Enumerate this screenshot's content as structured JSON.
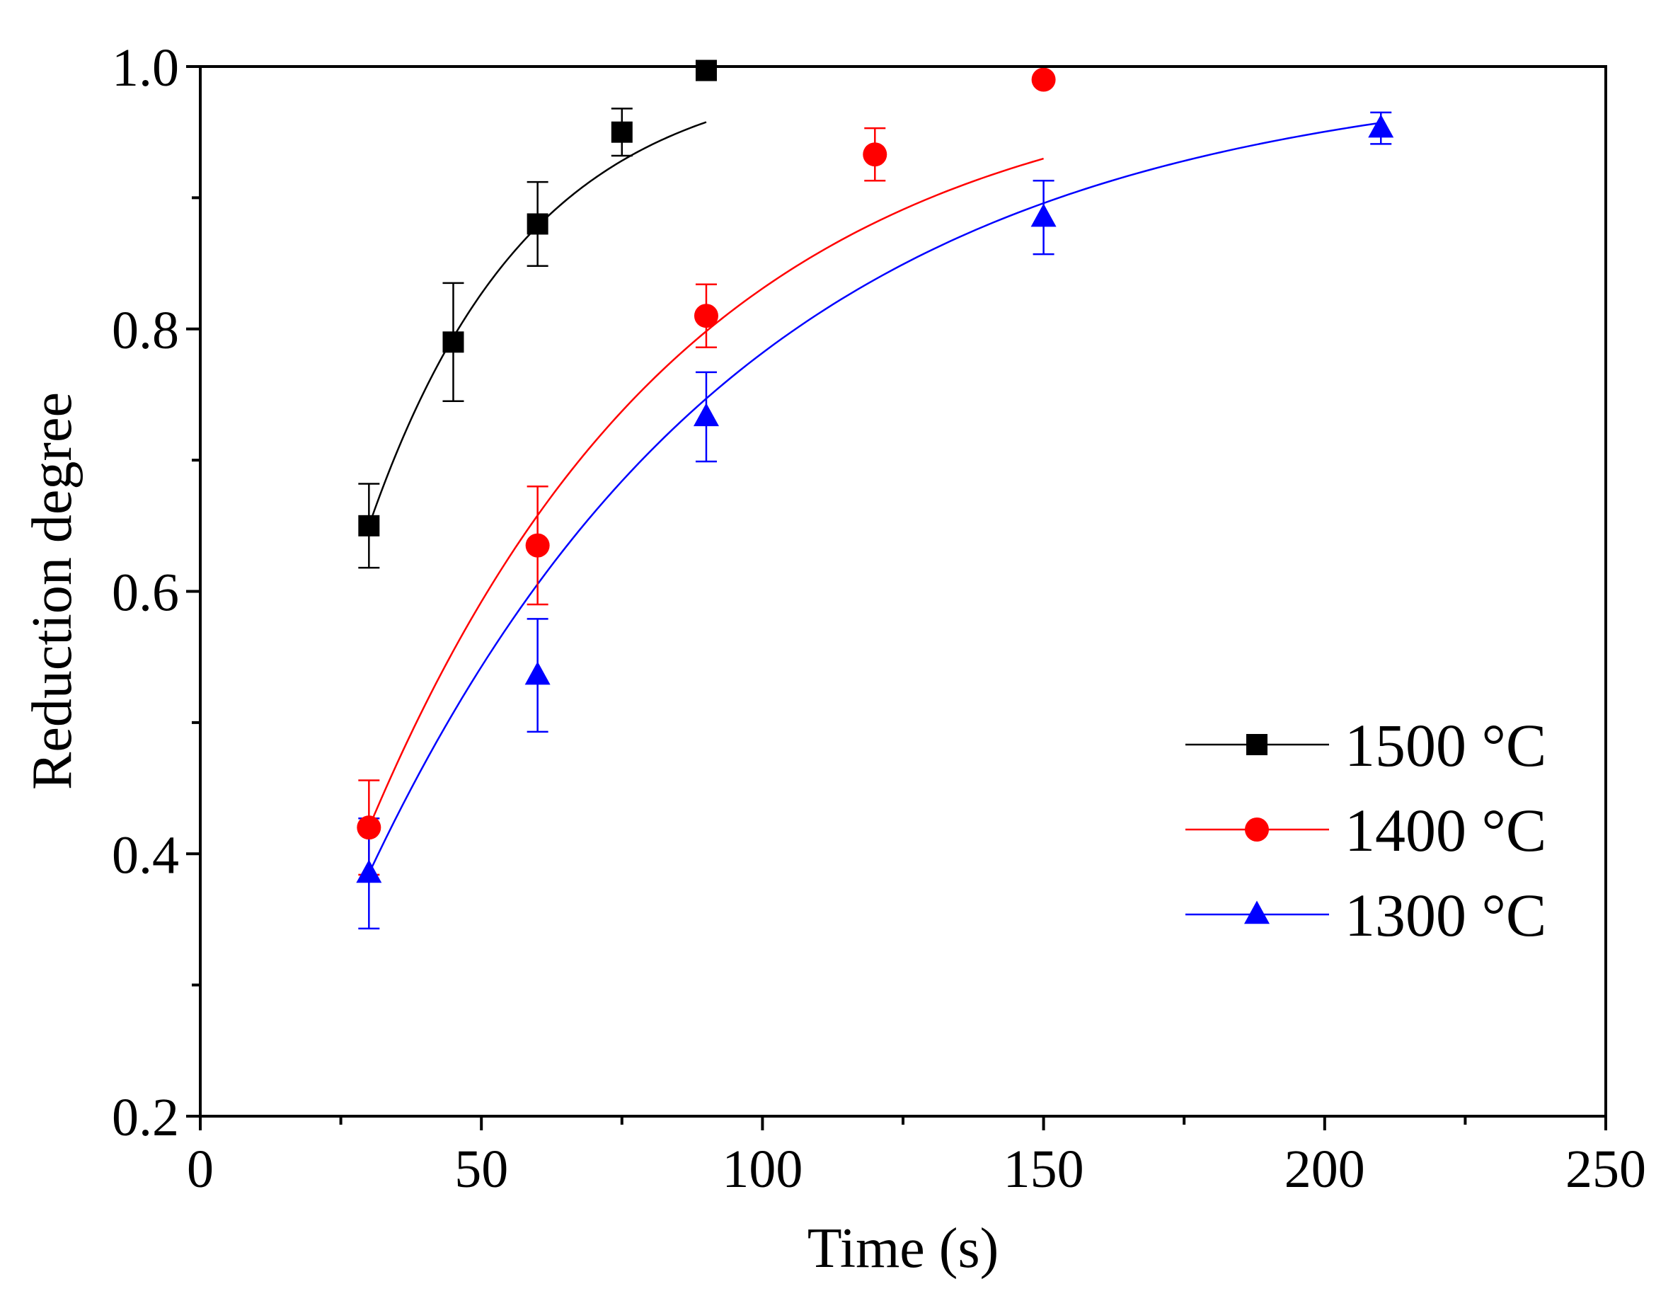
{
  "chart_data": {
    "type": "scatter",
    "title": "",
    "xlabel": "Time (s)",
    "ylabel": "Reduction degree",
    "xlim": [
      0,
      250
    ],
    "ylim": [
      0.2,
      1.0
    ],
    "grid": false,
    "legend_position": "bottom-right",
    "xticks": [
      {
        "value": 0,
        "label": "0"
      },
      {
        "value": 50,
        "label": "50"
      },
      {
        "value": 100,
        "label": "100"
      },
      {
        "value": 150,
        "label": "150"
      },
      {
        "value": 200,
        "label": "200"
      },
      {
        "value": 250,
        "label": "250"
      }
    ],
    "yticks": [
      {
        "value": 0.2,
        "label": "0.2"
      },
      {
        "value": 0.4,
        "label": "0.4"
      },
      {
        "value": 0.6,
        "label": "0.6"
      },
      {
        "value": 0.8,
        "label": "0.8"
      },
      {
        "value": 1.0,
        "label": "1.0"
      }
    ],
    "x_minor_ticks": [
      25,
      75,
      125,
      175,
      225
    ],
    "y_minor_ticks": [
      0.3,
      0.5,
      0.7,
      0.9
    ],
    "series": [
      {
        "name": "1500 °C",
        "color": "#000000",
        "marker": "square",
        "x": [
          30,
          45,
          60,
          75,
          90
        ],
        "y": [
          0.65,
          0.79,
          0.88,
          0.95,
          0.997
        ],
        "err": [
          0.032,
          0.045,
          0.032,
          0.018,
          0.0
        ],
        "fit_k": 0.0352
      },
      {
        "name": "1400 °C",
        "color": "#ff0000",
        "marker": "circle",
        "x": [
          30,
          60,
          90,
          120,
          150
        ],
        "y": [
          0.42,
          0.635,
          0.81,
          0.933,
          0.99
        ],
        "err": [
          0.036,
          0.045,
          0.024,
          0.02,
          0.0
        ],
        "fit_k": 0.0176
      },
      {
        "name": "1300 °C",
        "color": "#0000ff",
        "marker": "triangle",
        "x": [
          30,
          60,
          90,
          150,
          210
        ],
        "y": [
          0.385,
          0.536,
          0.733,
          0.885,
          0.953
        ],
        "err": [
          0.042,
          0.043,
          0.034,
          0.028,
          0.012
        ],
        "fit_k": 0.0148
      }
    ]
  }
}
